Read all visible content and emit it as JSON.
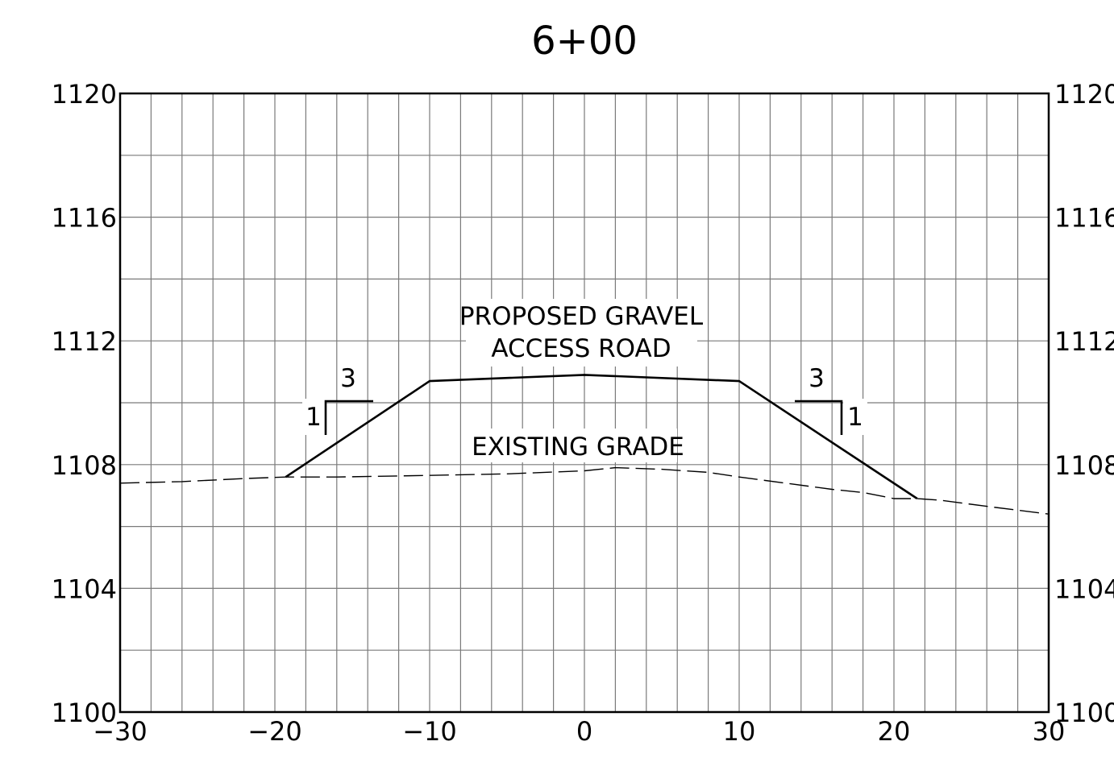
{
  "chart_data": {
    "type": "line",
    "title": "6+00",
    "xlim": [
      -30,
      30
    ],
    "ylim": [
      1100,
      1120
    ],
    "x_ticks": [
      "−30",
      "−20",
      "−10",
      "0",
      "10",
      "20",
      "30"
    ],
    "x_tick_values": [
      -30,
      -20,
      -10,
      0,
      10,
      20,
      30
    ],
    "y_ticks": [
      "1100",
      "1104",
      "1108",
      "1112",
      "1116",
      "1120"
    ],
    "y_tick_values": [
      1100,
      1104,
      1108,
      1112,
      1116,
      1120
    ],
    "grid": true,
    "grid_x_step": 2,
    "grid_y_step": 2,
    "series": [
      {
        "name": "PROPOSED GRAVEL ACCESS ROAD",
        "style": "solid",
        "points": [
          [
            -19.3,
            1107.6
          ],
          [
            -10,
            1110.7
          ],
          [
            0,
            1110.9
          ],
          [
            10,
            1110.7
          ],
          [
            21.5,
            1106.9
          ]
        ]
      },
      {
        "name": "EXISTING GRADE",
        "style": "dashed",
        "points": [
          [
            -30,
            1107.4
          ],
          [
            -26,
            1107.45
          ],
          [
            -22,
            1107.55
          ],
          [
            -19.3,
            1107.6
          ],
          [
            -16,
            1107.6
          ],
          [
            -10,
            1107.65
          ],
          [
            -5,
            1107.7
          ],
          [
            0,
            1107.8
          ],
          [
            2,
            1107.9
          ],
          [
            5,
            1107.85
          ],
          [
            8,
            1107.75
          ],
          [
            10,
            1107.6
          ],
          [
            13,
            1107.4
          ],
          [
            16,
            1107.2
          ],
          [
            18,
            1107.1
          ],
          [
            20,
            1106.9
          ],
          [
            21.5,
            1106.9
          ],
          [
            23,
            1106.85
          ],
          [
            26,
            1106.65
          ],
          [
            30,
            1106.4
          ]
        ]
      }
    ],
    "annotations": {
      "road_line1": "PROPOSED GRAVEL",
      "road_line2": "ACCESS ROAD",
      "existing": "EXISTING GRADE",
      "slope_left_run": "3",
      "slope_left_rise": "1",
      "slope_right_run": "3",
      "slope_right_rise": "1"
    }
  }
}
